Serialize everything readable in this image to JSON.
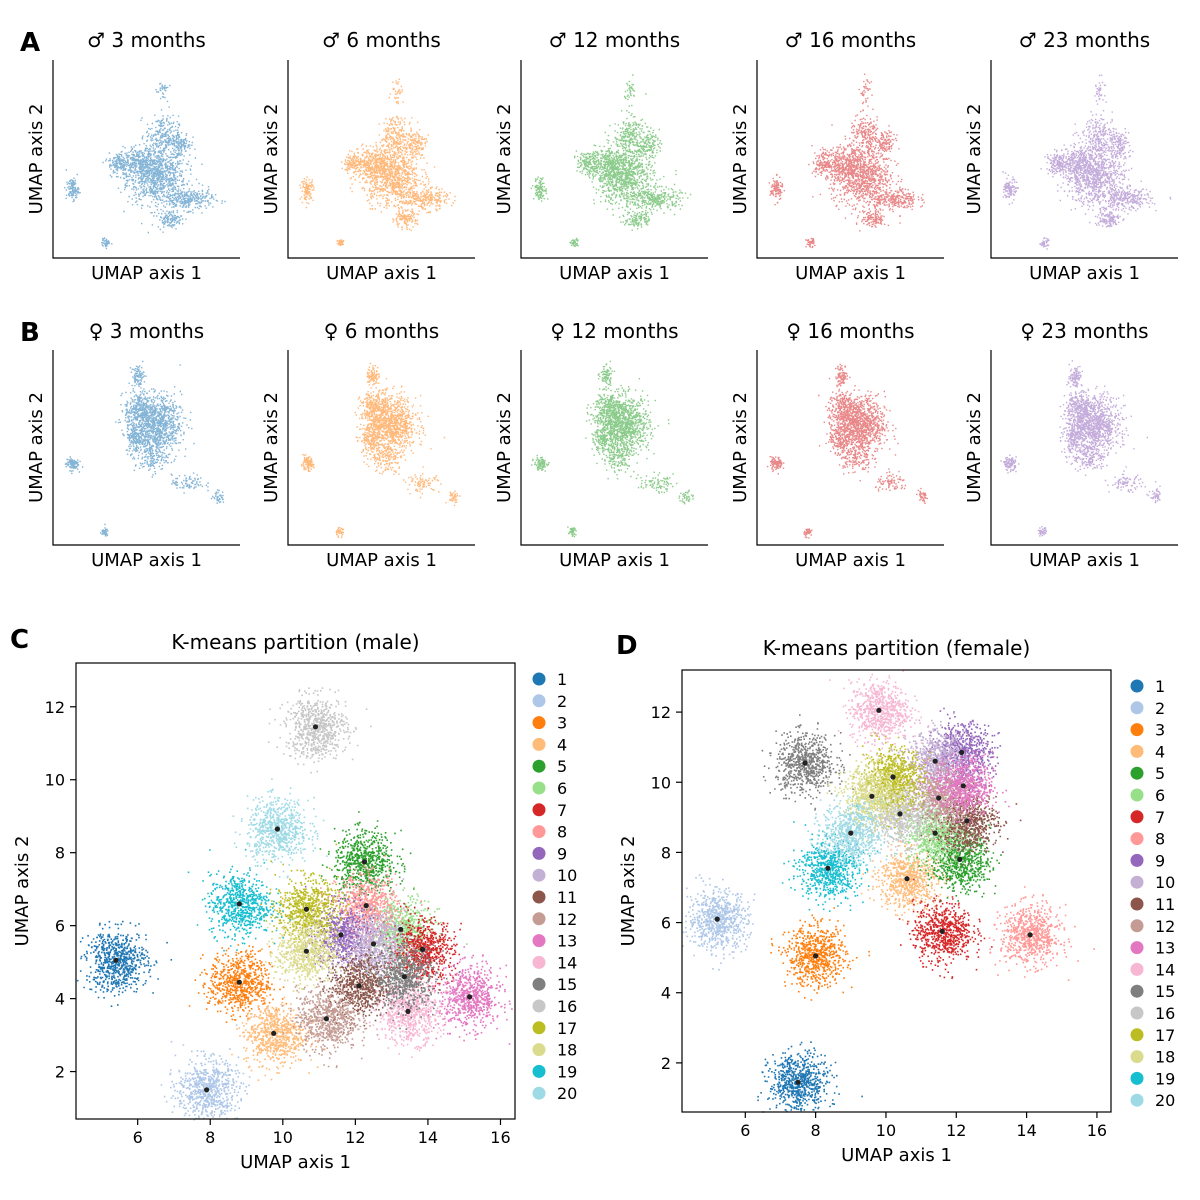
{
  "letters": {
    "a": "A",
    "b": "B",
    "c": "C",
    "d": "D"
  },
  "colors": {
    "3 months": "#1f77b4",
    "6 months": "#ff7f0e",
    "12 months": "#2ca02c",
    "16 months": "#d62728",
    "23 months": "#9467bd"
  },
  "small_panels": {
    "xlabel": "UMAP axis 1",
    "ylabel": "UMAP axis 2",
    "male_titles": [
      "♂ 3 months",
      "♂ 6 months",
      "♂ 12 months",
      "♂ 16 months",
      "♂ 23 months"
    ],
    "female_titles": [
      "♀ 3 months",
      "♀ 6 months",
      "♀ 12 months",
      "♀ 16 months",
      "♀ 23 months"
    ]
  },
  "chart_data": [
    {
      "type": "scatter",
      "title": "K-means partition (male)",
      "xlabel": "UMAP axis 1",
      "ylabel": "UMAP axis 2",
      "xlim": [
        4.3,
        16.4
      ],
      "ylim": [
        0.7,
        13.2
      ],
      "xticks": [
        6,
        8,
        10,
        12,
        14,
        16
      ],
      "yticks": [
        2,
        4,
        6,
        8,
        10,
        12
      ],
      "legend": [
        "1",
        "2",
        "3",
        "4",
        "5",
        "6",
        "7",
        "8",
        "9",
        "10",
        "11",
        "12",
        "13",
        "14",
        "15",
        "16",
        "17",
        "18",
        "19",
        "20"
      ],
      "palette": [
        "#1f77b4",
        "#aec7e8",
        "#ff7f0e",
        "#ffbb78",
        "#2ca02c",
        "#98df8a",
        "#d62728",
        "#ff9896",
        "#9467bd",
        "#c5b0d5",
        "#8c564b",
        "#c49c94",
        "#e377c2",
        "#f7b6d2",
        "#7f7f7f",
        "#c7c7c7",
        "#bcbd22",
        "#dbdb8d",
        "#17becf",
        "#9edae5"
      ],
      "centroids": [
        {
          "cluster": 1,
          "x": 5.4,
          "y": 5.05
        },
        {
          "cluster": 2,
          "x": 7.9,
          "y": 1.5
        },
        {
          "cluster": 3,
          "x": 8.8,
          "y": 4.45
        },
        {
          "cluster": 4,
          "x": 9.75,
          "y": 3.05
        },
        {
          "cluster": 5,
          "x": 12.25,
          "y": 7.75
        },
        {
          "cluster": 6,
          "x": 13.25,
          "y": 5.9
        },
        {
          "cluster": 7,
          "x": 13.85,
          "y": 5.35
        },
        {
          "cluster": 8,
          "x": 12.3,
          "y": 6.55
        },
        {
          "cluster": 9,
          "x": 11.6,
          "y": 5.75
        },
        {
          "cluster": 10,
          "x": 12.5,
          "y": 5.5
        },
        {
          "cluster": 11,
          "x": 12.1,
          "y": 4.35
        },
        {
          "cluster": 12,
          "x": 11.2,
          "y": 3.45
        },
        {
          "cluster": 13,
          "x": 15.15,
          "y": 4.05
        },
        {
          "cluster": 14,
          "x": 13.45,
          "y": 3.65
        },
        {
          "cluster": 15,
          "x": 13.35,
          "y": 4.6
        },
        {
          "cluster": 16,
          "x": 10.9,
          "y": 11.45
        },
        {
          "cluster": 17,
          "x": 10.65,
          "y": 6.45
        },
        {
          "cluster": 18,
          "x": 10.65,
          "y": 5.3
        },
        {
          "cluster": 19,
          "x": 8.8,
          "y": 6.6
        },
        {
          "cluster": 20,
          "x": 9.85,
          "y": 8.65
        }
      ]
    },
    {
      "type": "scatter",
      "title": "K-means partition (female)",
      "xlabel": "UMAP axis 1",
      "ylabel": "UMAP axis 2",
      "xlim": [
        4.2,
        16.4
      ],
      "ylim": [
        0.6,
        13.2
      ],
      "xticks": [
        6,
        8,
        10,
        12,
        14,
        16
      ],
      "yticks": [
        2,
        4,
        6,
        8,
        10,
        12
      ],
      "legend": [
        "1",
        "2",
        "3",
        "4",
        "5",
        "6",
        "7",
        "8",
        "9",
        "10",
        "11",
        "12",
        "13",
        "14",
        "15",
        "16",
        "17",
        "18",
        "19",
        "20"
      ],
      "palette": [
        "#1f77b4",
        "#aec7e8",
        "#ff7f0e",
        "#ffbb78",
        "#2ca02c",
        "#98df8a",
        "#d62728",
        "#ff9896",
        "#9467bd",
        "#c5b0d5",
        "#8c564b",
        "#c49c94",
        "#e377c2",
        "#f7b6d2",
        "#7f7f7f",
        "#c7c7c7",
        "#bcbd22",
        "#dbdb8d",
        "#17becf",
        "#9edae5"
      ],
      "centroids": [
        {
          "cluster": 1,
          "x": 7.5,
          "y": 1.45
        },
        {
          "cluster": 2,
          "x": 5.2,
          "y": 6.1
        },
        {
          "cluster": 3,
          "x": 8.0,
          "y": 5.05
        },
        {
          "cluster": 4,
          "x": 10.6,
          "y": 7.25
        },
        {
          "cluster": 5,
          "x": 12.1,
          "y": 7.8
        },
        {
          "cluster": 6,
          "x": 11.4,
          "y": 8.55
        },
        {
          "cluster": 7,
          "x": 11.6,
          "y": 5.75
        },
        {
          "cluster": 8,
          "x": 14.1,
          "y": 5.65
        },
        {
          "cluster": 9,
          "x": 12.15,
          "y": 10.85
        },
        {
          "cluster": 10,
          "x": 11.4,
          "y": 10.6
        },
        {
          "cluster": 11,
          "x": 12.3,
          "y": 8.9
        },
        {
          "cluster": 12,
          "x": 11.5,
          "y": 9.55
        },
        {
          "cluster": 13,
          "x": 12.2,
          "y": 9.9
        },
        {
          "cluster": 14,
          "x": 9.8,
          "y": 12.05
        },
        {
          "cluster": 15,
          "x": 7.7,
          "y": 10.55
        },
        {
          "cluster": 16,
          "x": 10.4,
          "y": 9.1
        },
        {
          "cluster": 17,
          "x": 10.2,
          "y": 10.15
        },
        {
          "cluster": 18,
          "x": 9.6,
          "y": 9.6
        },
        {
          "cluster": 19,
          "x": 8.35,
          "y": 7.55
        },
        {
          "cluster": 20,
          "x": 9.0,
          "y": 8.55
        }
      ]
    }
  ]
}
